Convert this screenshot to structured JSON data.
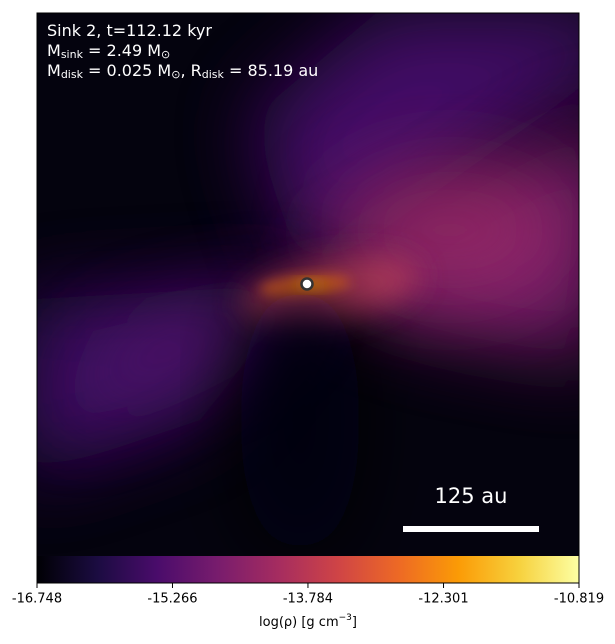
{
  "chart_data": {
    "type": "image",
    "annotations": [
      [
        {
          "text": "Sink 2, t=112.12 kyr"
        }
      ],
      [
        {
          "text": "M"
        },
        {
          "sub": "sink"
        },
        {
          "text": " = 2.49 M"
        },
        {
          "sub": "⊙"
        }
      ],
      [
        {
          "text": "M"
        },
        {
          "sub": "disk"
        },
        {
          "text": " = 0.025 M"
        },
        {
          "sub": "⊙"
        },
        {
          "text": ", R"
        },
        {
          "sub": "disk"
        },
        {
          "text": " = 85.19 au"
        }
      ]
    ],
    "scale_bar_label": "125 au",
    "colorbar": {
      "colormap": "inferno",
      "lim": [
        -16.748,
        -10.819
      ],
      "ticks": [
        -16.748,
        -15.266,
        -13.784,
        -12.301,
        -10.819
      ],
      "label": [
        {
          "text": "log(ρ) [g cm"
        },
        {
          "sup": "−3"
        },
        {
          "text": "]"
        }
      ]
    }
  }
}
